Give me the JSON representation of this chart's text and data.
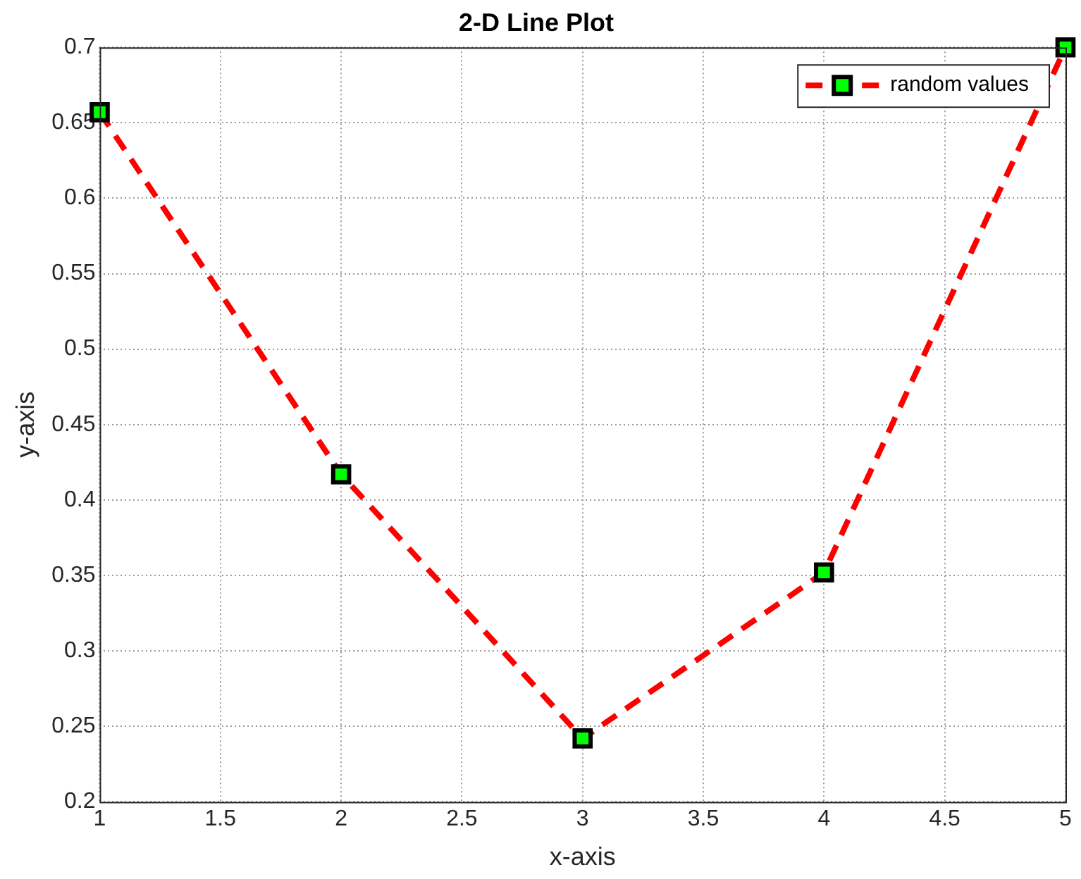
{
  "chart_data": {
    "type": "line",
    "title": "2-D Line Plot",
    "xlabel": "x-axis",
    "ylabel": "y-axis",
    "x": [
      1,
      2,
      3,
      4,
      5
    ],
    "series": [
      {
        "name": "random values",
        "color": "#ff0000",
        "colors": [
          "#00ff00",
          "#00ff00",
          "#00ff00",
          "#00ff00",
          "#00ff00"
        ],
        "values": [
          0.657,
          0.417,
          0.242,
          0.352,
          0.7
        ]
      }
    ],
    "xlim": [
      1,
      5
    ],
    "xticks": [
      1,
      1.5,
      2,
      2.5,
      3,
      3.5,
      4,
      4.5,
      5
    ],
    "ylim": [
      0.2,
      0.7
    ],
    "yticks": [
      0.2,
      0.25,
      0.3,
      0.35,
      0.4,
      0.45,
      0.5,
      0.55,
      0.6,
      0.65,
      0.7
    ],
    "grid": true,
    "legend": "top right",
    "marker": "square",
    "line_style": "dashed"
  }
}
